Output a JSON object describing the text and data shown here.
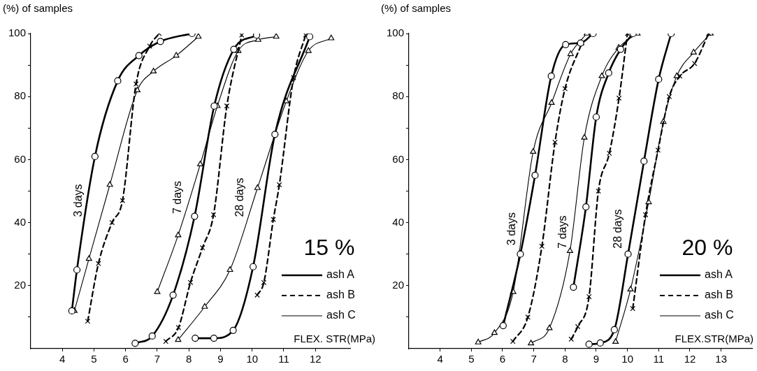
{
  "chart_data": [
    {
      "type": "line",
      "xlabel": "FLEX. STR(MPa)",
      "ylabel": "(%) of samples",
      "xlim": [
        3,
        13.1
      ],
      "xticks": [
        4,
        5,
        6,
        7,
        8,
        9,
        10,
        11,
        12
      ],
      "ylim": [
        0,
        100
      ],
      "yticks": [
        {
          "value": 10,
          "label": null
        },
        20,
        {
          "value": 30,
          "label": null
        },
        40,
        {
          "value": 50,
          "label": null
        },
        60,
        {
          "value": 70,
          "label": null
        },
        80,
        {
          "value": 90,
          "label": null
        },
        100
      ],
      "grid": false,
      "legend": "right",
      "annotations": [
        "3 days",
        "7 days",
        "28 days",
        "15 %"
      ],
      "series": [
        {
          "name": "ash A",
          "color": "#000000",
          "marker": "circle",
          "line_style": "solid",
          "x": [
            4.3,
            4.46,
            5.03,
            5.75,
            6.42,
            7.1,
            8.1,
            null,
            6.3,
            6.84,
            7.5,
            8.18,
            8.8,
            9.42,
            10.14,
            null,
            8.2,
            8.79,
            9.4,
            10.03,
            10.72,
            11.82
          ],
          "values": [
            12,
            25,
            61,
            85,
            93,
            97.5,
            100,
            null,
            1.7,
            4,
            17,
            42,
            77,
            95,
            99.5,
            null,
            3.3,
            3.3,
            5.8,
            26,
            68,
            99
          ]
        },
        {
          "name": "ash B",
          "color": "#000000",
          "marker": "cross",
          "line_style": "dashed",
          "x": [
            4.8,
            5.14,
            5.57,
            5.9,
            6.33,
            6.76,
            7.06,
            null,
            7.27,
            7.67,
            8.05,
            8.43,
            8.78,
            9.2,
            9.67,
            null,
            10.16,
            10.37,
            10.67,
            10.86,
            11.31,
            11.69
          ],
          "values": [
            8.7,
            27,
            40,
            47,
            84,
            96,
            100,
            null,
            2.3,
            6.7,
            21,
            32,
            42.5,
            77,
            99.5,
            null,
            17,
            21,
            41,
            52,
            86,
            99.5
          ]
        },
        {
          "name": "ash C",
          "color": "#000000",
          "marker": "triangle",
          "line_style": "solid",
          "x": [
            4.38,
            4.84,
            5.5,
            6.37,
            6.88,
            7.6,
            8.3,
            null,
            7.0,
            7.66,
            8.36,
            8.9,
            9.56,
            10.19,
            10.76,
            null,
            7.66,
            8.5,
            9.3,
            10.17,
            11.08,
            11.78,
            12.5
          ],
          "values": [
            12,
            28.5,
            52,
            82,
            88,
            93,
            99,
            null,
            18,
            36,
            58.5,
            77,
            94.5,
            98,
            99,
            null,
            2.8,
            13.3,
            25,
            51,
            78.5,
            94.5,
            98.5
          ]
        }
      ]
    },
    {
      "type": "line",
      "xlabel": "FLEX.STR(MPa)",
      "ylabel": "(%) of samples",
      "xlim": [
        3,
        14
      ],
      "xticks": [
        4,
        5,
        6,
        7,
        8,
        9,
        10,
        11,
        12,
        13
      ],
      "ylim": [
        0,
        100
      ],
      "yticks": [
        {
          "value": 10,
          "label": null
        },
        20,
        {
          "value": 30,
          "label": null
        },
        40,
        {
          "value": 50,
          "label": null
        },
        60,
        {
          "value": 70,
          "label": null
        },
        80,
        {
          "value": 90,
          "label": null
        },
        100
      ],
      "grid": false,
      "legend": "right",
      "annotations": [
        "3 days",
        "7 days",
        "28 days",
        "20 %"
      ],
      "series": [
        {
          "name": "ash A",
          "color": "#000000",
          "marker": "circle",
          "line_style": "solid",
          "x": [
            6.02,
            6.57,
            7.04,
            7.56,
            8.02,
            8.5,
            8.9,
            null,
            8.27,
            8.67,
            9.0,
            9.4,
            9.78,
            10.18,
            null,
            8.77,
            9.13,
            9.58,
            10.02,
            10.53,
            11.0,
            11.4
          ],
          "values": [
            7.3,
            30,
            55,
            86.5,
            96.5,
            97,
            100,
            null,
            19.5,
            45,
            73.5,
            87.5,
            95,
            100,
            null,
            1.4,
            1.8,
            6,
            30,
            59.5,
            85.5,
            100
          ]
        },
        {
          "name": "ash B",
          "color": "#000000",
          "marker": "cross",
          "line_style": "dashed",
          "x": [
            6.33,
            6.81,
            7.26,
            7.68,
            8.0,
            8.54,
            null,
            8.2,
            8.41,
            8.77,
            9.07,
            9.42,
            9.73,
            10.0,
            null,
            10.17,
            10.58,
            10.98,
            11.34,
            11.68,
            12.15,
            12.6
          ],
          "values": [
            2.3,
            10,
            32.5,
            65.5,
            82.5,
            97,
            null,
            3,
            7,
            16.5,
            50,
            62,
            79.5,
            100,
            null,
            12.7,
            42.5,
            63,
            80,
            86.5,
            90.5,
            100
          ]
        },
        {
          "name": "ash C",
          "color": "#000000",
          "marker": "triangle",
          "line_style": "solid",
          "x": [
            5.22,
            5.74,
            6.34,
            6.98,
            7.57,
            8.18,
            8.7,
            null,
            6.91,
            7.5,
            8.16,
            8.62,
            9.18,
            9.72,
            10.32,
            null,
            9.62,
            10.1,
            10.68,
            11.15,
            11.58,
            12.12,
            12.66
          ],
          "values": [
            2,
            5,
            18,
            62.5,
            78,
            93.5,
            100,
            null,
            1.7,
            6.5,
            31,
            67,
            86.5,
            95.5,
            100,
            null,
            2.2,
            18.8,
            46.5,
            72,
            86.5,
            94,
            100
          ]
        }
      ]
    }
  ]
}
